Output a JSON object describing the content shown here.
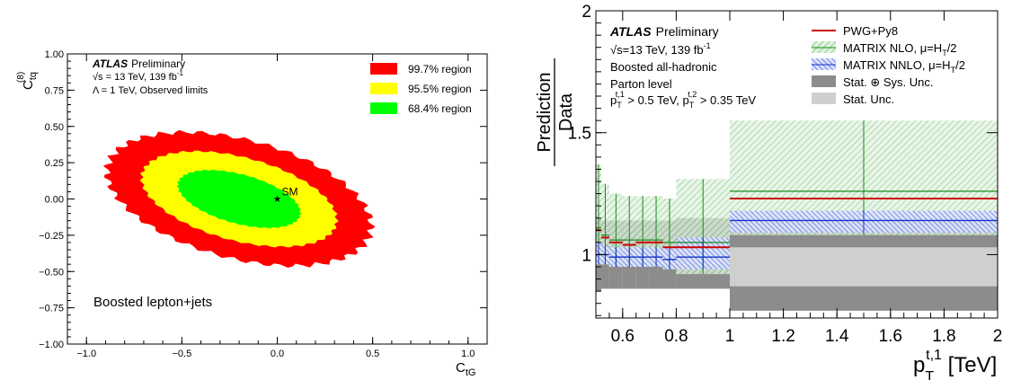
{
  "colors": {
    "region_997": "#ff0000",
    "region_955": "#ffff00",
    "region_684": "#00ff00",
    "pwg": "#cc0000",
    "nlo": "#1a8a1a",
    "nnlo": "#1533c8",
    "stat_sys": "#8c8c8c",
    "stat": "#cfcfcf"
  },
  "chart_data": [
    {
      "type": "scatter",
      "subtype": "confidence-region contours",
      "xlabel_main": "C",
      "xlabel_sub": "tG",
      "ylabel_main": "C",
      "ylabel_sub": "tq",
      "ylabel_sup": "(8)",
      "xlim": [
        -1.1,
        1.1
      ],
      "ylim": [
        -1.0,
        1.0
      ],
      "x_ticks": [
        -1.0,
        -0.5,
        0.0,
        0.5,
        1.0
      ],
      "x_tick_labels": [
        "−1.0",
        "−0.5",
        "0.0",
        "0.5",
        "1.0"
      ],
      "y_ticks": [
        1.0,
        0.75,
        0.5,
        0.25,
        0.0,
        -0.25,
        -0.5,
        -0.75,
        -1.0
      ],
      "y_tick_labels": [
        "1.00",
        "0.75",
        "0.50",
        "0.25",
        "0.00",
        "−0.25",
        "−0.50",
        "−0.75",
        "−1.00"
      ],
      "info": {
        "atlas": "ATLAS",
        "prelim": "Preliminary",
        "energy": "√s = 13 TeV, 139 fb",
        "energy_sup": "-1",
        "lambda": "Λ = 1 TeV, Observed limits"
      },
      "regions": [
        {
          "name": "99.7% region",
          "color": "#ff0000",
          "center": [
            -0.2,
            0.0
          ],
          "semi_axis_major": 0.73,
          "semi_axis_minor": 0.4,
          "angle_deg": -22
        },
        {
          "name": "95.5% region",
          "color": "#ffff00",
          "center": [
            -0.2,
            0.0
          ],
          "semi_axis_major": 0.54,
          "semi_axis_minor": 0.28,
          "angle_deg": -22
        },
        {
          "name": "68.4% region",
          "color": "#00ff00",
          "center": [
            -0.2,
            0.0
          ],
          "semi_axis_major": 0.34,
          "semi_axis_minor": 0.165,
          "angle_deg": -22
        }
      ],
      "legend": [
        "99.7% region",
        "95.5% region",
        "68.4% region"
      ],
      "legend_position": "top-right",
      "sm_point": {
        "x": 0.0,
        "y": 0.0,
        "label": "SM"
      },
      "annotation": "Boosted lepton+jets"
    },
    {
      "type": "line",
      "subtype": "ratio with uncertainty bands",
      "ylabel_num": "Prediction",
      "ylabel_den": "Data",
      "xlabel_main": "p",
      "xlabel_sub": "T",
      "xlabel_sup": "t,1",
      "xlabel_unit": " [TeV]",
      "xlim": [
        0.5,
        2.0
      ],
      "ylim": [
        0.74,
        2.0
      ],
      "x_ticks": [
        0.6,
        0.8,
        1.0,
        1.2,
        1.4,
        1.6,
        1.8,
        2.0
      ],
      "x_tick_labels": [
        "0.6",
        "0.8",
        "1",
        "1.2",
        "1.4",
        "1.6",
        "1.8",
        "2"
      ],
      "y_ticks": [
        1.0,
        1.5,
        2.0
      ],
      "y_tick_labels": [
        "1",
        "1.5",
        "2"
      ],
      "info": {
        "atlas": "ATLAS",
        "prelim": "Preliminary",
        "energy": "√s=13 TeV, 139 fb",
        "energy_sup": "-1",
        "line3": "Boosted all-hadronic",
        "line4": "Parton level",
        "cut_lead_prefix": "p",
        "cut_lead_sub": "T",
        "cut_lead_sup": "t,1",
        "cut_lead_value": " > 0.5 TeV, ",
        "cut_sub_prefix": "p",
        "cut_sub_sub": "T",
        "cut_sub_sup": "t,2",
        "cut_sub_value": " > 0.35 TeV"
      },
      "legend_position": "top-right",
      "legend": [
        {
          "label": "PWG+Py8",
          "style": "line"
        },
        {
          "label": "MATRIX NLO, μ=H",
          "sub": "T",
          "tail": "/2",
          "style": "hatch-green"
        },
        {
          "label": "MATRIX NNLO, μ=H",
          "sub": "T",
          "tail": "/2",
          "style": "hatch-blue"
        },
        {
          "label": "Stat. ⊕ Sys. Unc.",
          "style": "fill-dark"
        },
        {
          "label": "Stat. Unc.",
          "style": "fill-light"
        }
      ],
      "bins": [
        {
          "lo": 0.5,
          "hi": 0.52,
          "stat_sys": [
            0.85,
            1.15
          ],
          "stat": [
            0.96,
            1.04
          ],
          "pwg": 1.1,
          "nlo": 1.11,
          "nlo_band": [
            0.97,
            1.37
          ],
          "nnlo": 1.0,
          "nnlo_band": [
            0.96,
            1.05
          ]
        },
        {
          "lo": 0.52,
          "hi": 0.55,
          "stat_sys": [
            0.86,
            1.14
          ],
          "stat": [
            0.97,
            1.03
          ],
          "pwg": 1.07,
          "nlo": 1.08,
          "nlo_band": [
            0.96,
            1.29
          ],
          "nnlo": 1.0,
          "nnlo_band": [
            0.96,
            1.04
          ]
        },
        {
          "lo": 0.55,
          "hi": 0.6,
          "stat_sys": [
            0.86,
            1.14
          ],
          "stat": [
            0.97,
            1.03
          ],
          "pwg": 1.05,
          "nlo": 1.06,
          "nlo_band": [
            0.95,
            1.25
          ],
          "nnlo": 0.99,
          "nnlo_band": [
            0.95,
            1.03
          ]
        },
        {
          "lo": 0.6,
          "hi": 0.65,
          "stat_sys": [
            0.86,
            1.14
          ],
          "stat": [
            0.97,
            1.03
          ],
          "pwg": 1.04,
          "nlo": 1.06,
          "nlo_band": [
            0.95,
            1.24
          ],
          "nnlo": 0.99,
          "nnlo_band": [
            0.95,
            1.03
          ]
        },
        {
          "lo": 0.65,
          "hi": 0.7,
          "stat_sys": [
            0.86,
            1.14
          ],
          "stat": [
            0.97,
            1.03
          ],
          "pwg": 1.05,
          "nlo": 1.06,
          "nlo_band": [
            0.95,
            1.24
          ],
          "nnlo": 0.99,
          "nnlo_band": [
            0.95,
            1.03
          ]
        },
        {
          "lo": 0.7,
          "hi": 0.75,
          "stat_sys": [
            0.86,
            1.14
          ],
          "stat": [
            0.97,
            1.03
          ],
          "pwg": 1.05,
          "nlo": 1.06,
          "nlo_band": [
            0.95,
            1.24
          ],
          "nnlo": 0.99,
          "nnlo_band": [
            0.95,
            1.03
          ]
        },
        {
          "lo": 0.75,
          "hi": 0.8,
          "stat_sys": [
            0.86,
            1.14
          ],
          "stat": [
            0.96,
            1.03
          ],
          "pwg": 1.03,
          "nlo": 1.05,
          "nlo_band": [
            0.94,
            1.23
          ],
          "nnlo": 0.98,
          "nnlo_band": [
            0.94,
            1.03
          ]
        },
        {
          "lo": 0.8,
          "hi": 1.0,
          "stat_sys": [
            0.86,
            1.15
          ],
          "stat": [
            0.96,
            1.04
          ],
          "pwg": 1.03,
          "nlo": 1.05,
          "nlo_band": [
            0.92,
            1.31
          ],
          "nnlo": 0.99,
          "nnlo_band": [
            0.94,
            1.07
          ]
        },
        {
          "lo": 1.0,
          "hi": 2.0,
          "stat_sys": [
            0.77,
            1.14
          ],
          "stat": [
            0.87,
            1.03
          ],
          "pwg": 1.23,
          "nlo": 1.26,
          "nlo_band": [
            1.08,
            1.55
          ],
          "nnlo": 1.14,
          "nnlo_band": [
            1.09,
            1.18
          ]
        }
      ]
    }
  ]
}
